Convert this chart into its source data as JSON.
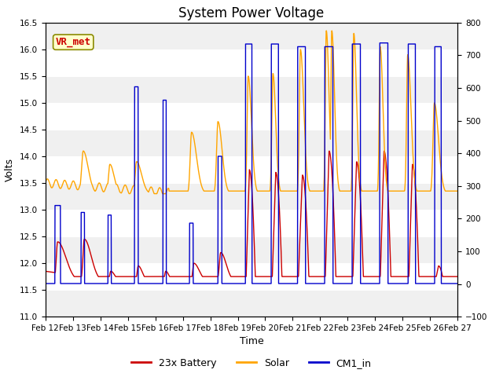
{
  "title": "System Power Voltage",
  "xlabel": "Time",
  "ylabel_left": "Volts",
  "ylim_left": [
    11.0,
    16.5
  ],
  "ylim_right": [
    -100,
    800
  ],
  "yticks_left": [
    11.0,
    11.5,
    12.0,
    12.5,
    13.0,
    13.5,
    14.0,
    14.5,
    15.0,
    15.5,
    16.0,
    16.5
  ],
  "yticks_right": [
    -100,
    0,
    100,
    200,
    300,
    400,
    500,
    600,
    700,
    800
  ],
  "fig_bg": "#ffffff",
  "plot_bg_light": "#f0f0f0",
  "plot_bg_dark": "#e0e0e0",
  "annotation_text": "VR_met",
  "annotation_color": "#cc0000",
  "annotation_bg": "#ffffcc",
  "annotation_edge": "#8B8B00",
  "legend_entries": [
    "23x Battery",
    "Solar",
    "CM1_in"
  ],
  "line_colors": [
    "#cc0000",
    "#ffa500",
    "#0000cc"
  ],
  "xtick_labels": [
    "Feb 12",
    "Feb 13",
    "Feb 14",
    "Feb 15",
    "Feb 16",
    "Feb 17",
    "Feb 18",
    "Feb 19",
    "Feb 20",
    "Feb 21",
    "Feb 22",
    "Feb 23",
    "Feb 24",
    "Feb 25",
    "Feb 26",
    "Feb 27"
  ],
  "title_fontsize": 12,
  "axis_label_fontsize": 9,
  "tick_fontsize": 7.5,
  "legend_fontsize": 9
}
